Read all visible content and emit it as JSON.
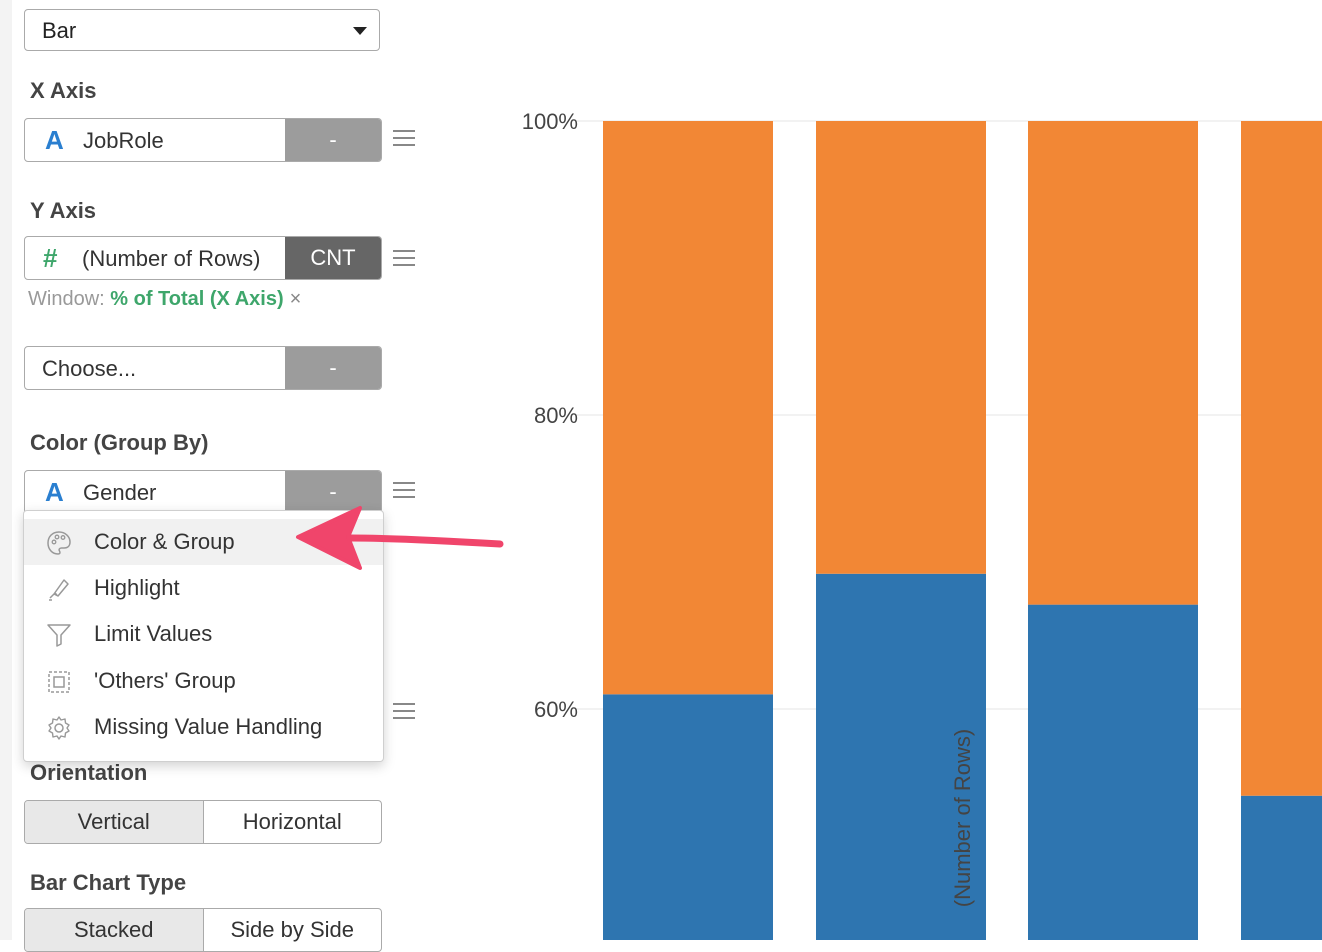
{
  "chart_type_select": {
    "value": "Bar"
  },
  "x_axis": {
    "title": "X Axis",
    "field": "JobRole",
    "aggregation": "-"
  },
  "y_axis": {
    "title": "Y Axis",
    "field": "(Number of Rows)",
    "aggregation": "CNT",
    "window_label": "Window:",
    "window_value": "% of Total (X Axis)",
    "window_remove": "×"
  },
  "y2": {
    "field": "Choose...",
    "aggregation": "-"
  },
  "color": {
    "title": "Color (Group By)",
    "field": "Gender",
    "aggregation": "-"
  },
  "menu": {
    "items": [
      {
        "label": "Color & Group",
        "icon": "palette-icon"
      },
      {
        "label": "Highlight",
        "icon": "highlighter-icon"
      },
      {
        "label": "Limit Values",
        "icon": "filter-icon"
      },
      {
        "label": "'Others' Group",
        "icon": "others-group-icon"
      },
      {
        "label": "Missing Value Handling",
        "icon": "gear-icon"
      }
    ]
  },
  "orientation": {
    "title": "Orientation",
    "options": [
      "Vertical",
      "Horizontal"
    ],
    "selected": "Vertical"
  },
  "bar_chart_type": {
    "title": "Bar Chart Type",
    "options": [
      "Stacked",
      "Side by Side"
    ],
    "selected": "Stacked"
  },
  "colors": {
    "series_blue": "#2e75b0",
    "series_orange": "#f28735",
    "annotation_arrow": "#f0456b",
    "window_green": "#3ea66b",
    "type_icon_blue": "#2a7fd0"
  },
  "chart_data": {
    "type": "bar",
    "stacked": true,
    "ylabel": "(Number of Rows)",
    "ytick_labels": [
      "100%",
      "80%",
      "60%"
    ],
    "ytick_values": [
      100,
      80,
      60
    ],
    "ylim_visible": [
      44,
      100
    ],
    "grid": true,
    "series": [
      {
        "name": "",
        "color": "#2e75b0",
        "values": [
          61,
          69.2,
          67.1,
          54.1
        ]
      },
      {
        "name": "",
        "color": "#f28735",
        "values": [
          39,
          30.8,
          32.9,
          45.9
        ]
      }
    ]
  }
}
